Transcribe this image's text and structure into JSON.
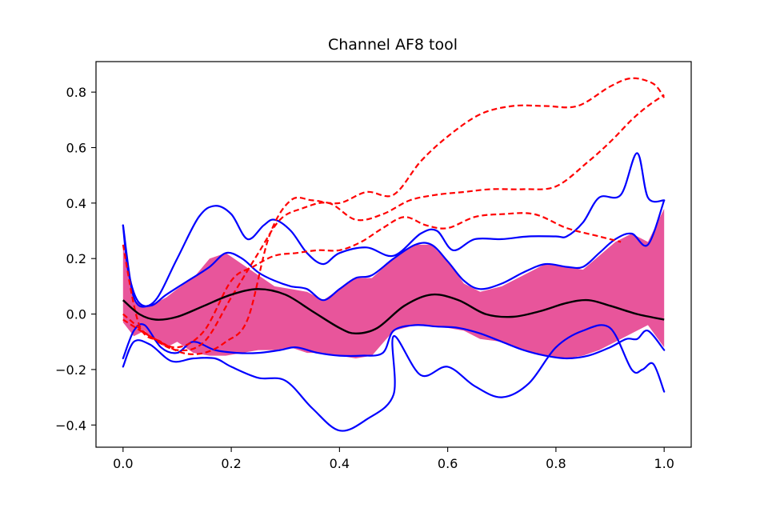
{
  "chart_data": {
    "type": "line",
    "title": "Channel AF8 tool",
    "xlabel": "",
    "ylabel": "",
    "xlim": [
      -0.05,
      1.05
    ],
    "ylim": [
      -0.48,
      0.91
    ],
    "x_ticks": [
      0.0,
      0.2,
      0.4,
      0.6,
      0.8,
      1.0
    ],
    "x_tick_labels": [
      "0.0",
      "0.2",
      "0.4",
      "0.6",
      "0.8",
      "1.0"
    ],
    "y_ticks": [
      -0.4,
      -0.2,
      0.0,
      0.2,
      0.4,
      0.6,
      0.8
    ],
    "y_tick_labels": [
      "−0.4",
      "−0.2",
      "0.0",
      "0.2",
      "0.4",
      "0.6",
      "0.8"
    ],
    "grid": false,
    "legend": "none",
    "colors": {
      "band": "#e8559b",
      "blue": "#0000ff",
      "red": "#ff0000",
      "mean": "#000000"
    },
    "band": {
      "x": [
        0.0,
        0.02,
        0.04,
        0.06,
        0.08,
        0.1,
        0.13,
        0.16,
        0.19,
        0.22,
        0.25,
        0.28,
        0.31,
        0.34,
        0.37,
        0.4,
        0.43,
        0.46,
        0.5,
        0.54,
        0.57,
        0.6,
        0.63,
        0.66,
        0.7,
        0.74,
        0.78,
        0.82,
        0.85,
        0.88,
        0.91,
        0.94,
        0.97,
        1.0
      ],
      "upper": [
        0.25,
        0.05,
        0.03,
        0.04,
        0.06,
        0.09,
        0.13,
        0.2,
        0.22,
        0.18,
        0.14,
        0.1,
        0.09,
        0.08,
        0.05,
        0.09,
        0.13,
        0.13,
        0.2,
        0.25,
        0.25,
        0.19,
        0.11,
        0.08,
        0.1,
        0.14,
        0.18,
        0.17,
        0.16,
        0.21,
        0.26,
        0.29,
        0.26,
        0.38
      ],
      "lower": [
        -0.03,
        -0.08,
        -0.06,
        -0.1,
        -0.12,
        -0.1,
        -0.14,
        -0.15,
        -0.15,
        -0.14,
        -0.13,
        -0.13,
        -0.12,
        -0.14,
        -0.14,
        -0.15,
        -0.16,
        -0.15,
        -0.06,
        -0.04,
        -0.045,
        -0.05,
        -0.06,
        -0.09,
        -0.1,
        -0.13,
        -0.15,
        -0.16,
        -0.15,
        -0.13,
        -0.1,
        -0.07,
        -0.04,
        -0.12
      ]
    },
    "series": [
      {
        "style": "solid",
        "color": "#0000ff",
        "x": [
          0.0,
          0.01,
          0.03,
          0.06,
          0.1,
          0.14,
          0.17,
          0.2,
          0.23,
          0.26,
          0.28,
          0.31,
          0.34,
          0.37,
          0.4,
          0.45,
          0.5,
          0.55,
          0.58,
          0.61,
          0.65,
          0.7,
          0.75,
          0.8,
          0.82,
          0.85,
          0.88,
          0.92,
          0.95,
          0.97,
          1.0
        ],
        "y": [
          0.32,
          0.15,
          0.04,
          0.05,
          0.2,
          0.35,
          0.39,
          0.36,
          0.27,
          0.32,
          0.34,
          0.3,
          0.22,
          0.18,
          0.22,
          0.24,
          0.21,
          0.29,
          0.3,
          0.23,
          0.27,
          0.27,
          0.28,
          0.28,
          0.28,
          0.33,
          0.42,
          0.43,
          0.58,
          0.42,
          0.41
        ]
      },
      {
        "style": "solid",
        "color": "#0000ff",
        "x": [
          0.0,
          0.02,
          0.05,
          0.08,
          0.12,
          0.16,
          0.19,
          0.22,
          0.25,
          0.28,
          0.31,
          0.34,
          0.37,
          0.4,
          0.43,
          0.46,
          0.5,
          0.54,
          0.57,
          0.6,
          0.63,
          0.66,
          0.7,
          0.74,
          0.78,
          0.82,
          0.85,
          0.88,
          0.91,
          0.94,
          0.97,
          1.0
        ],
        "y": [
          0.32,
          0.06,
          0.03,
          0.07,
          0.12,
          0.17,
          0.22,
          0.2,
          0.15,
          0.12,
          0.1,
          0.09,
          0.05,
          0.09,
          0.13,
          0.14,
          0.2,
          0.25,
          0.25,
          0.19,
          0.12,
          0.09,
          0.11,
          0.15,
          0.18,
          0.17,
          0.17,
          0.22,
          0.27,
          0.29,
          0.25,
          0.41
        ]
      },
      {
        "style": "solid",
        "color": "#0000ff",
        "x": [
          0.0,
          0.02,
          0.04,
          0.07,
          0.1,
          0.13,
          0.17,
          0.21,
          0.25,
          0.29,
          0.32,
          0.36,
          0.4,
          0.44,
          0.48,
          0.5,
          0.54,
          0.58,
          0.62,
          0.66,
          0.7,
          0.74,
          0.78,
          0.82,
          0.86,
          0.9,
          0.93,
          0.95,
          0.97,
          1.0
        ],
        "y": [
          -0.16,
          -0.06,
          -0.04,
          -0.12,
          -0.14,
          -0.1,
          -0.13,
          -0.14,
          -0.14,
          -0.13,
          -0.12,
          -0.14,
          -0.15,
          -0.15,
          -0.14,
          -0.06,
          -0.04,
          -0.045,
          -0.05,
          -0.07,
          -0.1,
          -0.13,
          -0.15,
          -0.16,
          -0.15,
          -0.12,
          -0.09,
          -0.09,
          -0.06,
          -0.13
        ]
      },
      {
        "style": "solid",
        "color": "#0000ff",
        "x": [
          0.0,
          0.02,
          0.05,
          0.09,
          0.13,
          0.17,
          0.2,
          0.25,
          0.3,
          0.35,
          0.4,
          0.45,
          0.5,
          0.5,
          0.55,
          0.6,
          0.65,
          0.7,
          0.75,
          0.8,
          0.85,
          0.9,
          0.94,
          0.96,
          0.98,
          1.0
        ],
        "y": [
          -0.19,
          -0.1,
          -0.11,
          -0.17,
          -0.16,
          -0.16,
          -0.19,
          -0.23,
          -0.24,
          -0.34,
          -0.42,
          -0.38,
          -0.29,
          -0.08,
          -0.22,
          -0.19,
          -0.26,
          -0.3,
          -0.25,
          -0.12,
          -0.06,
          -0.05,
          -0.2,
          -0.2,
          -0.18,
          -0.28
        ]
      },
      {
        "style": "dashed",
        "color": "#ff0000",
        "x": [
          0.0,
          0.03,
          0.07,
          0.11,
          0.15,
          0.19,
          0.23,
          0.27,
          0.31,
          0.35,
          0.4,
          0.45,
          0.5,
          0.55,
          0.6,
          0.66,
          0.72,
          0.78,
          0.84,
          0.9,
          0.94,
          0.98,
          1.0
        ],
        "y": [
          0.25,
          -0.04,
          -0.1,
          -0.14,
          -0.14,
          -0.1,
          -0.02,
          0.28,
          0.41,
          0.41,
          0.4,
          0.44,
          0.43,
          0.55,
          0.64,
          0.72,
          0.75,
          0.75,
          0.75,
          0.82,
          0.85,
          0.83,
          0.78
        ]
      },
      {
        "style": "dashed",
        "color": "#ff0000",
        "x": [
          0.0,
          0.05,
          0.1,
          0.15,
          0.2,
          0.25,
          0.29,
          0.33,
          0.38,
          0.43,
          0.48,
          0.53,
          0.58,
          0.63,
          0.68,
          0.74,
          0.8,
          0.86,
          0.9,
          0.94,
          0.97,
          1.0
        ],
        "y": [
          0.0,
          -0.08,
          -0.13,
          -0.1,
          0.06,
          0.22,
          0.34,
          0.38,
          0.4,
          0.34,
          0.36,
          0.41,
          0.43,
          0.44,
          0.45,
          0.45,
          0.46,
          0.55,
          0.62,
          0.7,
          0.75,
          0.79
        ]
      },
      {
        "style": "dashed",
        "color": "#ff0000",
        "x": [
          0.0,
          0.05,
          0.1,
          0.15,
          0.2,
          0.24,
          0.28,
          0.32,
          0.36,
          0.4,
          0.44,
          0.48,
          0.52,
          0.56,
          0.6,
          0.65,
          0.7,
          0.76,
          0.82,
          0.88,
          0.92
        ],
        "y": [
          -0.02,
          -0.08,
          -0.12,
          -0.06,
          0.12,
          0.17,
          0.21,
          0.22,
          0.23,
          0.23,
          0.26,
          0.31,
          0.35,
          0.32,
          0.31,
          0.35,
          0.36,
          0.36,
          0.31,
          0.28,
          0.26
        ]
      }
    ],
    "mean": {
      "x": [
        0.0,
        0.03,
        0.06,
        0.1,
        0.15,
        0.2,
        0.25,
        0.3,
        0.35,
        0.4,
        0.43,
        0.47,
        0.52,
        0.57,
        0.62,
        0.67,
        0.72,
        0.77,
        0.82,
        0.86,
        0.9,
        0.95,
        1.0
      ],
      "y": [
        0.05,
        0.0,
        -0.02,
        -0.01,
        0.03,
        0.07,
        0.09,
        0.07,
        0.01,
        -0.05,
        -0.07,
        -0.05,
        0.03,
        0.07,
        0.05,
        0.0,
        -0.01,
        0.01,
        0.04,
        0.05,
        0.03,
        0.0,
        -0.02
      ]
    }
  }
}
